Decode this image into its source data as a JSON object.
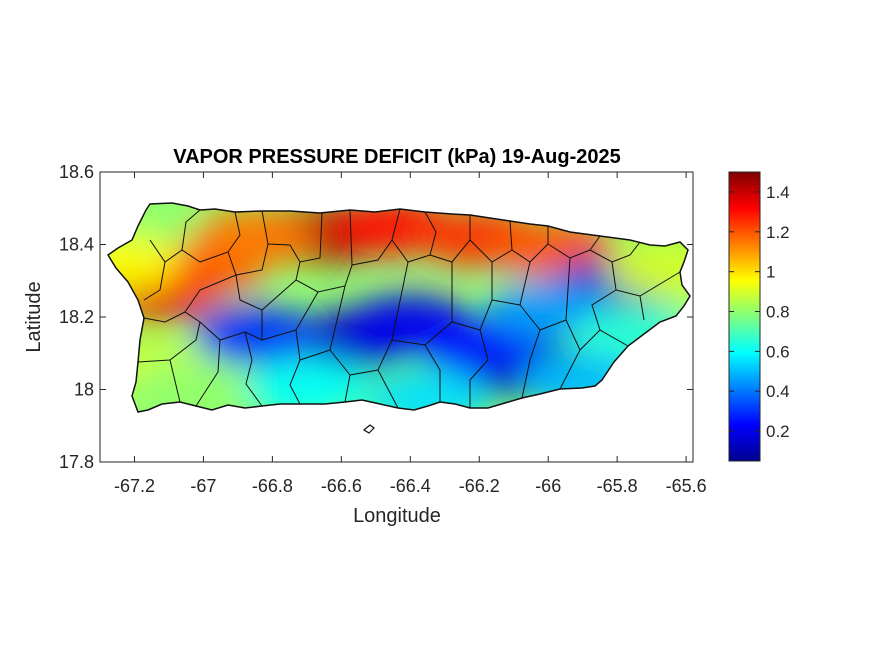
{
  "title": "VAPOR PRESSURE DEFICIT (kPa) 19-Aug-2025",
  "xlabel": "Longitude",
  "ylabel": "Latitude",
  "chart_data": {
    "type": "heatmap",
    "title": "VAPOR PRESSURE DEFICIT (kPa) 19-Aug-2025",
    "xlabel": "Longitude",
    "ylabel": "Latitude",
    "xlim": [
      -67.3,
      -65.58
    ],
    "ylim": [
      17.8,
      18.6
    ],
    "x_ticks": [
      -67.2,
      -67,
      -66.8,
      -66.6,
      -66.4,
      -66.2,
      -66,
      -65.8,
      -65.6
    ],
    "x_tick_labels": [
      "-67.2",
      "-67",
      "-66.8",
      "-66.6",
      "-66.4",
      "-66.2",
      "-66",
      "-65.8",
      "-65.6"
    ],
    "y_ticks": [
      17.8,
      18,
      18.2,
      18.4,
      18.6
    ],
    "y_tick_labels": [
      "17.8",
      "18",
      "18.2",
      "18.4",
      "18.6"
    ],
    "colorbar": {
      "colormap": "jet",
      "range": [
        0.05,
        1.5
      ],
      "ticks": [
        0.2,
        0.4,
        0.6,
        0.8,
        1,
        1.2,
        1.4
      ],
      "tick_labels": [
        "0.2",
        "0.4",
        "0.6",
        "0.8",
        "1",
        "1.2",
        "1.4"
      ]
    },
    "regions": [
      {
        "lon": -66.65,
        "lat": 18.43,
        "vpd": 1.45
      },
      {
        "lon": -66.45,
        "lat": 18.45,
        "vpd": 1.3
      },
      {
        "lon": -66.2,
        "lat": 18.42,
        "vpd": 1.25
      },
      {
        "lon": -65.98,
        "lat": 18.39,
        "vpd": 1.2
      },
      {
        "lon": -67.13,
        "lat": 18.27,
        "vpd": 1.35
      },
      {
        "lon": -67.0,
        "lat": 18.34,
        "vpd": 1.2
      },
      {
        "lon": -66.85,
        "lat": 18.42,
        "vpd": 1.15
      },
      {
        "lon": -66.55,
        "lat": 18.14,
        "vpd": 0.15
      },
      {
        "lon": -66.85,
        "lat": 18.15,
        "vpd": 0.3
      },
      {
        "lon": -66.4,
        "lat": 18.18,
        "vpd": 0.2
      },
      {
        "lon": -66.08,
        "lat": 18.06,
        "vpd": 0.1
      },
      {
        "lon": -66.2,
        "lat": 18.12,
        "vpd": 0.25
      },
      {
        "lon": -65.82,
        "lat": 18.28,
        "vpd": 0.15
      },
      {
        "lon": -66.0,
        "lat": 18.22,
        "vpd": 0.45
      },
      {
        "lon": -67.15,
        "lat": 18.05,
        "vpd": 0.9
      },
      {
        "lon": -67.05,
        "lat": 18.0,
        "vpd": 0.8
      },
      {
        "lon": -66.7,
        "lat": 18.0,
        "vpd": 0.6
      },
      {
        "lon": -66.35,
        "lat": 17.97,
        "vpd": 0.55
      },
      {
        "lon": -65.75,
        "lat": 18.15,
        "vpd": 0.65
      },
      {
        "lon": -65.65,
        "lat": 18.33,
        "vpd": 0.9
      },
      {
        "lon": -67.2,
        "lat": 18.45,
        "vpd": 0.8
      },
      {
        "lon": -67.25,
        "lat": 18.35,
        "vpd": 0.95
      },
      {
        "lon": -65.9,
        "lat": 18.02,
        "vpd": 0.5
      }
    ]
  }
}
